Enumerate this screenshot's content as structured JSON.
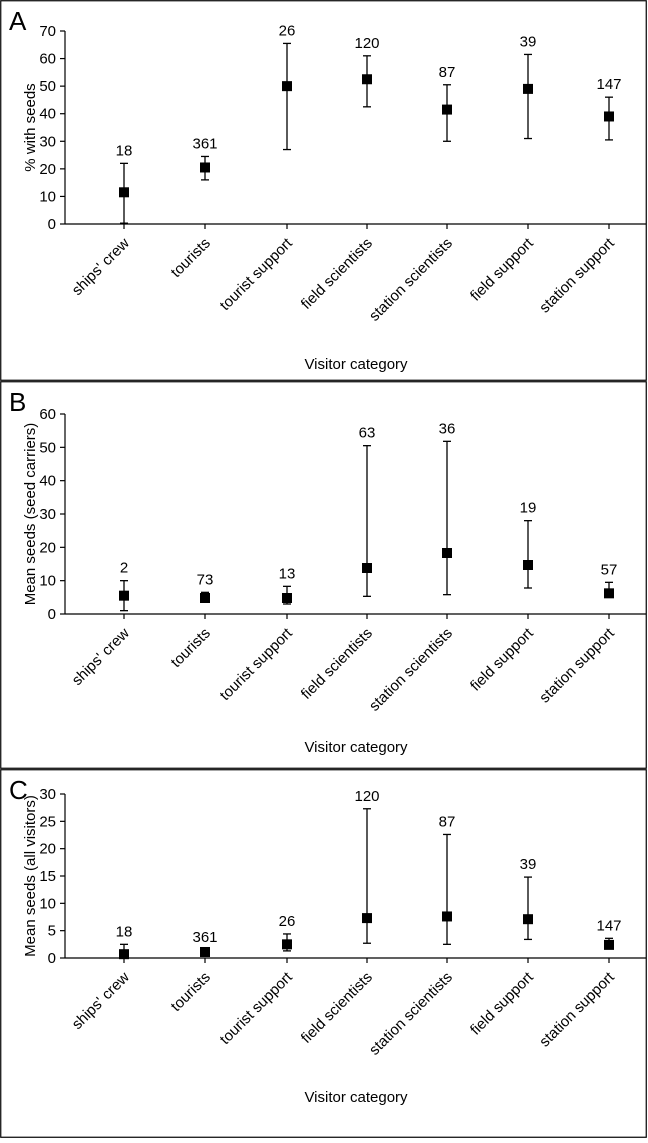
{
  "chart_data": [
    {
      "panel_label": "A",
      "type": "scatter",
      "xlabel": "Visitor category",
      "ylabel": "% with seeds",
      "ylim": [
        0,
        70
      ],
      "yticks": [
        0,
        10,
        20,
        30,
        40,
        50,
        60,
        70
      ],
      "categories": [
        "ships' crew",
        "tourists",
        "tourist support",
        "field scientists",
        "station scientists",
        "field support",
        "station support"
      ],
      "values": [
        11.5,
        20.5,
        50,
        52.5,
        41.5,
        49,
        39
      ],
      "error_low": [
        0.3,
        16,
        27,
        42.5,
        30,
        31,
        30.5
      ],
      "error_high": [
        22,
        24.5,
        65.5,
        61,
        50.5,
        61.5,
        46
      ],
      "n_labels": [
        "18",
        "361",
        "26",
        "120",
        "87",
        "39",
        "147"
      ],
      "grid": false
    },
    {
      "panel_label": "B",
      "type": "scatter",
      "xlabel": "Visitor category",
      "ylabel": "Mean seeds (seed carriers)",
      "ylim": [
        0,
        60
      ],
      "yticks": [
        0,
        10,
        20,
        30,
        40,
        50,
        60
      ],
      "categories": [
        "ships' crew",
        "tourists",
        "tourist support",
        "field scientists",
        "station scientists",
        "field support",
        "station support"
      ],
      "values": [
        5.5,
        4.8,
        4.8,
        13.8,
        18.3,
        14.7,
        6.2
      ],
      "error_low": [
        1,
        3.8,
        3,
        5.3,
        5.8,
        7.8,
        5
      ],
      "error_high": [
        10,
        6.5,
        8.3,
        50.5,
        51.8,
        28,
        9.5
      ],
      "n_labels": [
        "2",
        "73",
        "13",
        "63",
        "36",
        "19",
        "57"
      ],
      "grid": false
    },
    {
      "panel_label": "C",
      "type": "scatter",
      "xlabel": "Visitor category",
      "ylabel": "Mean seeds (all visitors)",
      "ylim": [
        0,
        30
      ],
      "yticks": [
        0,
        5,
        10,
        15,
        20,
        25,
        30
      ],
      "categories": [
        "ships' crew",
        "tourists",
        "tourist support",
        "field scientists",
        "station scientists",
        "field support",
        "station support"
      ],
      "values": [
        0.7,
        1.1,
        2.5,
        7.3,
        7.6,
        7.1,
        2.4
      ],
      "error_low": [
        0.1,
        0.8,
        1.3,
        2.7,
        2.5,
        3.4,
        1.9
      ],
      "error_high": [
        2.5,
        1.5,
        4.4,
        27.3,
        22.6,
        14.8,
        3.6
      ],
      "n_labels": [
        "18",
        "361",
        "26",
        "120",
        "87",
        "39",
        "147"
      ],
      "grid": false
    }
  ]
}
